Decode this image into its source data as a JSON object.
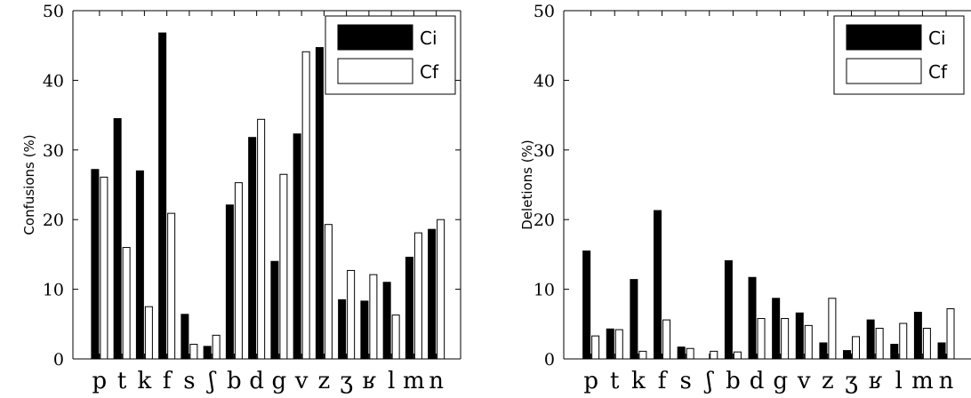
{
  "chart_data": [
    {
      "type": "bar",
      "ylabel": "Confusions (%)",
      "xlabel": "",
      "ylim": [
        0,
        50
      ],
      "yticks": [
        "0",
        "10",
        "20",
        "30",
        "40",
        "50"
      ],
      "categories": [
        "p",
        "t",
        "k",
        "f",
        "s",
        "ʃ",
        "b",
        "d",
        "g",
        "v",
        "z",
        "ʒ",
        "ʁ",
        "l",
        "m",
        "n"
      ],
      "series": [
        {
          "name": "Ci",
          "color": "#000000",
          "values": [
            27.2,
            34.5,
            27.0,
            46.8,
            6.4,
            1.8,
            22.1,
            31.8,
            14.0,
            32.3,
            44.7,
            8.5,
            8.3,
            11.0,
            14.6,
            18.6
          ]
        },
        {
          "name": "Cf",
          "color": "#ffffff",
          "values": [
            26.1,
            16.0,
            7.5,
            20.9,
            2.1,
            3.4,
            25.3,
            34.4,
            26.5,
            44.1,
            19.3,
            12.7,
            12.1,
            6.3,
            18.1,
            20.0
          ]
        }
      ],
      "legend": "top-right"
    },
    {
      "type": "bar",
      "ylabel": "Deletions (%)",
      "xlabel": "",
      "ylim": [
        0,
        50
      ],
      "yticks": [
        "0",
        "10",
        "20",
        "30",
        "40",
        "50"
      ],
      "categories": [
        "p",
        "t",
        "k",
        "f",
        "s",
        "ʃ",
        "b",
        "d",
        "g",
        "v",
        "z",
        "ʒ",
        "ʁ",
        "l",
        "m",
        "n"
      ],
      "series": [
        {
          "name": "Ci",
          "color": "#000000",
          "values": [
            15.5,
            4.3,
            11.4,
            21.3,
            1.7,
            0.0,
            14.1,
            11.7,
            8.7,
            6.6,
            2.3,
            1.2,
            5.6,
            2.1,
            6.7,
            2.3
          ]
        },
        {
          "name": "Cf",
          "color": "#ffffff",
          "values": [
            3.3,
            4.2,
            1.1,
            5.6,
            1.5,
            1.1,
            1.0,
            5.8,
            5.8,
            4.8,
            8.7,
            3.2,
            4.4,
            5.1,
            4.4,
            7.2
          ]
        }
      ],
      "legend": "top-right"
    }
  ]
}
